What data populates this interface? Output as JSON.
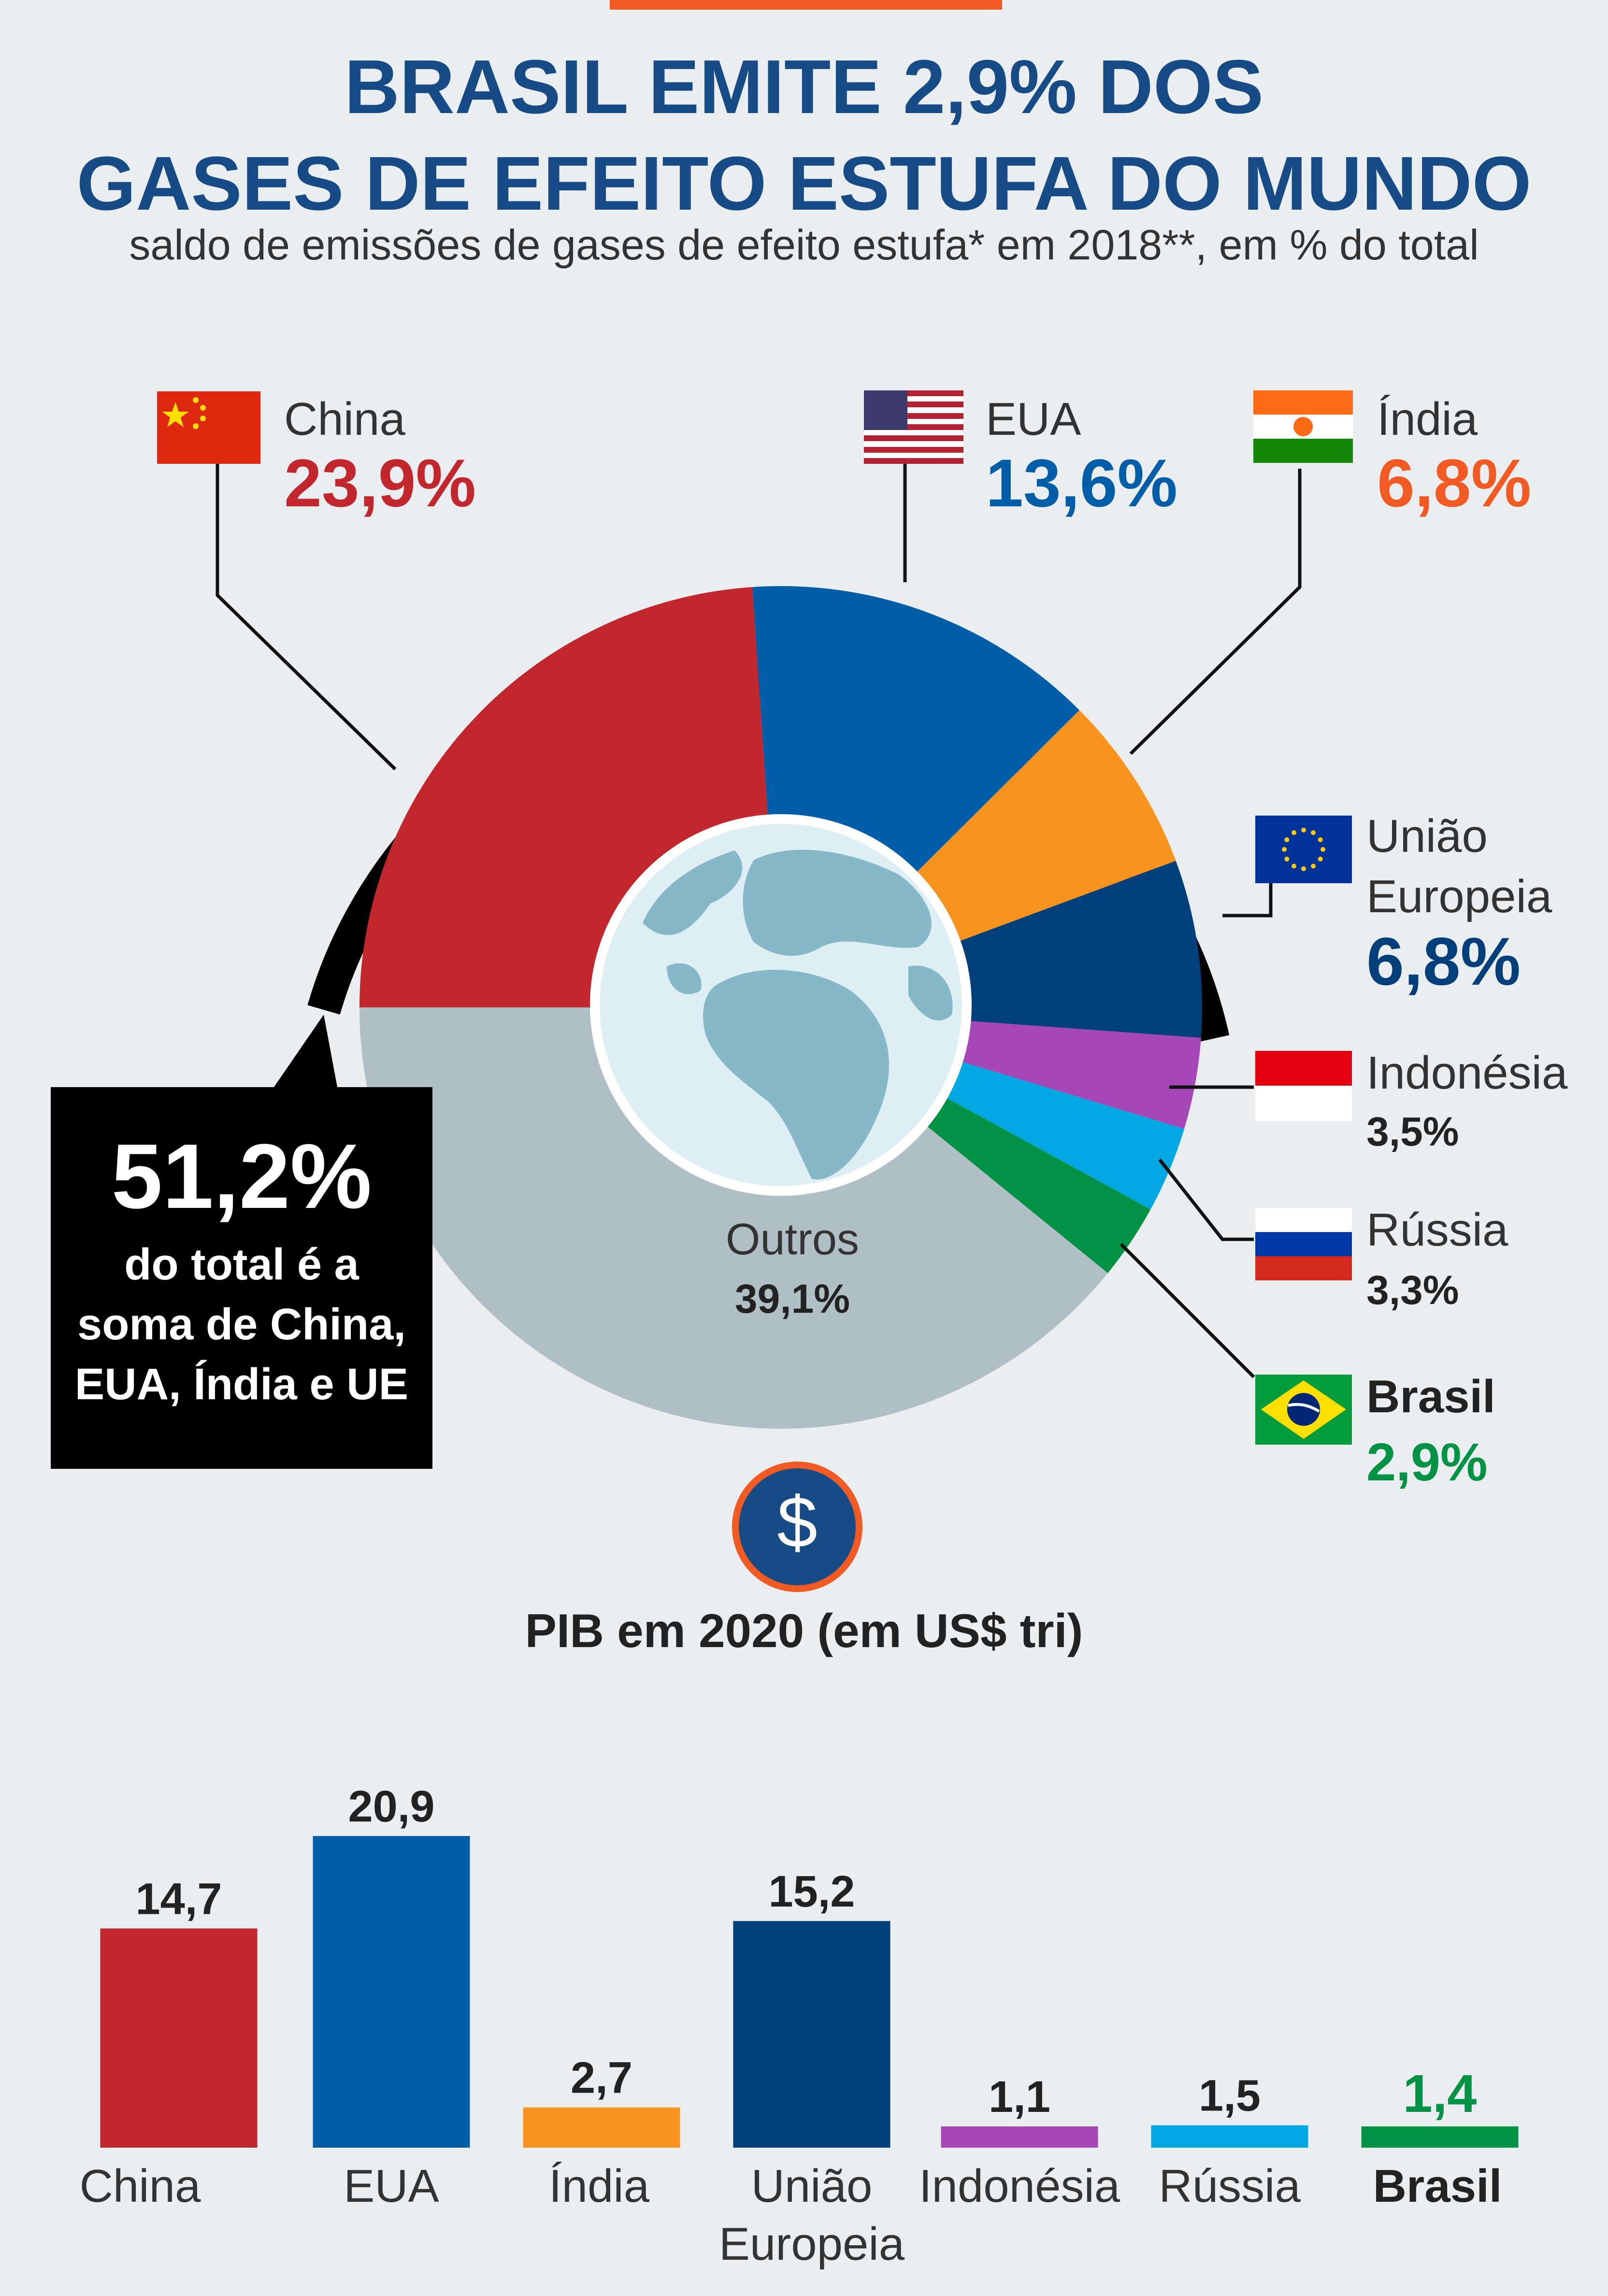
{
  "title_line1": "BRASIL EMITE 2,9% DOS",
  "title_line2": "GASES DE EFEITO ESTUFA DO MUNDO",
  "subtitle": "saldo de emissões de gases de efeito estufa* em 2018**, em % do total",
  "colors": {
    "china": "#C1272D",
    "eua": "#005EA8",
    "india": "#F7941D",
    "ue": "#003F7A",
    "indonesia": "#A547B6",
    "russia": "#00A7E0",
    "brasil": "#009245",
    "outros": "#B0BEC5",
    "title": "#174B86",
    "accent": "#F15A22"
  },
  "emissions": {
    "china": {
      "name": "China",
      "value": "23,9%"
    },
    "eua": {
      "name": "EUA",
      "value": "13,6%"
    },
    "india": {
      "name": "Índia",
      "value": "6,8%"
    },
    "ue": {
      "name_line1": "União",
      "name_line2": "Europeia",
      "value": "6,8%"
    },
    "indonesia": {
      "name": "Indonésia",
      "value": "3,5%"
    },
    "russia": {
      "name": "Rússia",
      "value": "3,3%"
    },
    "brasil": {
      "name": "Brasil",
      "value": "2,9%"
    },
    "outros": {
      "name": "Outros",
      "value": "39,1%"
    }
  },
  "callout": {
    "big": "51,2%",
    "text": "do total é a soma de China, EUA, Índia e UE"
  },
  "icons": [
    "flag-china-icon",
    "flag-usa-icon",
    "flag-india-icon",
    "flag-eu-icon",
    "flag-indonesia-icon",
    "flag-russia-icon",
    "flag-brazil-icon",
    "globe-icon",
    "dollar-icon"
  ],
  "chart_data": [
    {
      "type": "pie",
      "categories": [
        "China",
        "EUA",
        "Índia",
        "União Europeia",
        "Indonésia",
        "Rússia",
        "Brasil",
        "Outros"
      ],
      "values": [
        23.9,
        13.6,
        6.8,
        6.8,
        3.5,
        3.3,
        2.9,
        39.1
      ],
      "labels": [
        "23,9%",
        "13,6%",
        "6,8%",
        "6,8%",
        "3,5%",
        "3,3%",
        "2,9%",
        "39,1%"
      ]
    },
    {
      "type": "bar",
      "title": "PIB em 2020 (em US$ tri)",
      "categories": [
        "China",
        "EUA",
        "Índia",
        "União Europeia",
        "Indonésia",
        "Rússia",
        "Brasil"
      ],
      "values": [
        14.7,
        20.9,
        2.7,
        15.2,
        1.1,
        1.5,
        1.4
      ],
      "labels": [
        "14,7",
        "20,9",
        "2,7",
        "15,2",
        "1,1",
        "1,5",
        "1,4"
      ],
      "ylim": [
        0,
        20.9
      ]
    }
  ]
}
